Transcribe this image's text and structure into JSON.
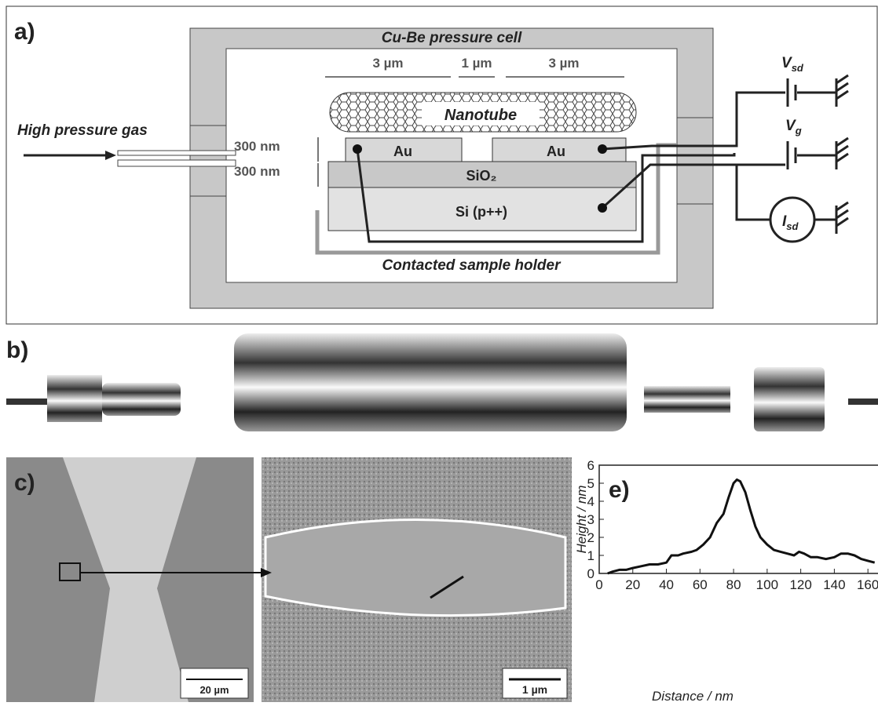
{
  "labels": {
    "a": "a)",
    "b": "b)",
    "c": "c)",
    "e": "e)"
  },
  "diagram": {
    "cell": "Cu-Be pressure cell",
    "gas": "High pressure gas",
    "gap_left": "3 µm",
    "gap_mid": "1 µm",
    "gap_right": "3 µm",
    "thick_au": "300 nm",
    "thick_oxide": "300 nm",
    "nanotube": "Nanotube",
    "au_left": "Au",
    "au_right": "Au",
    "oxide": "SiO₂",
    "silicon": "Si (p++)",
    "holder": "Contacted sample holder",
    "vsd": {
      "symbol": "V",
      "sub": "sd"
    },
    "vg": {
      "symbol": "V",
      "sub": "g"
    },
    "isd": {
      "symbol": "I",
      "sub": "sd"
    }
  },
  "scalebars": {
    "c": "20 µm",
    "d": "1 µm"
  },
  "chart_data": {
    "type": "line",
    "xlabel": "Distance / nm",
    "ylabel": "Height / nm",
    "xlim": [
      0,
      166
    ],
    "ylim": [
      0,
      6
    ],
    "xticks": [
      0,
      20,
      40,
      60,
      80,
      100,
      120,
      140,
      160
    ],
    "yticks": [
      0,
      1,
      2,
      3,
      4,
      5,
      6
    ],
    "series": [
      {
        "color": "#111111",
        "x": [
          5,
          8,
          12,
          16,
          20,
          25,
          30,
          35,
          40,
          43,
          47,
          50,
          55,
          58,
          62,
          66,
          70,
          74,
          77,
          80,
          82,
          84,
          87,
          90,
          93,
          96,
          100,
          104,
          108,
          112,
          116,
          119,
          122,
          126,
          130,
          135,
          140,
          144,
          148,
          152,
          156,
          160,
          164
        ],
        "values": [
          0,
          0.1,
          0.2,
          0.2,
          0.3,
          0.4,
          0.5,
          0.5,
          0.6,
          1.0,
          1.0,
          1.1,
          1.2,
          1.3,
          1.6,
          2.0,
          2.8,
          3.3,
          4.2,
          5.0,
          5.2,
          5.1,
          4.5,
          3.5,
          2.6,
          2.0,
          1.6,
          1.3,
          1.2,
          1.1,
          1.0,
          1.2,
          1.1,
          0.9,
          0.9,
          0.8,
          0.9,
          1.1,
          1.1,
          1.0,
          0.8,
          0.7,
          0.6
        ]
      }
    ]
  }
}
